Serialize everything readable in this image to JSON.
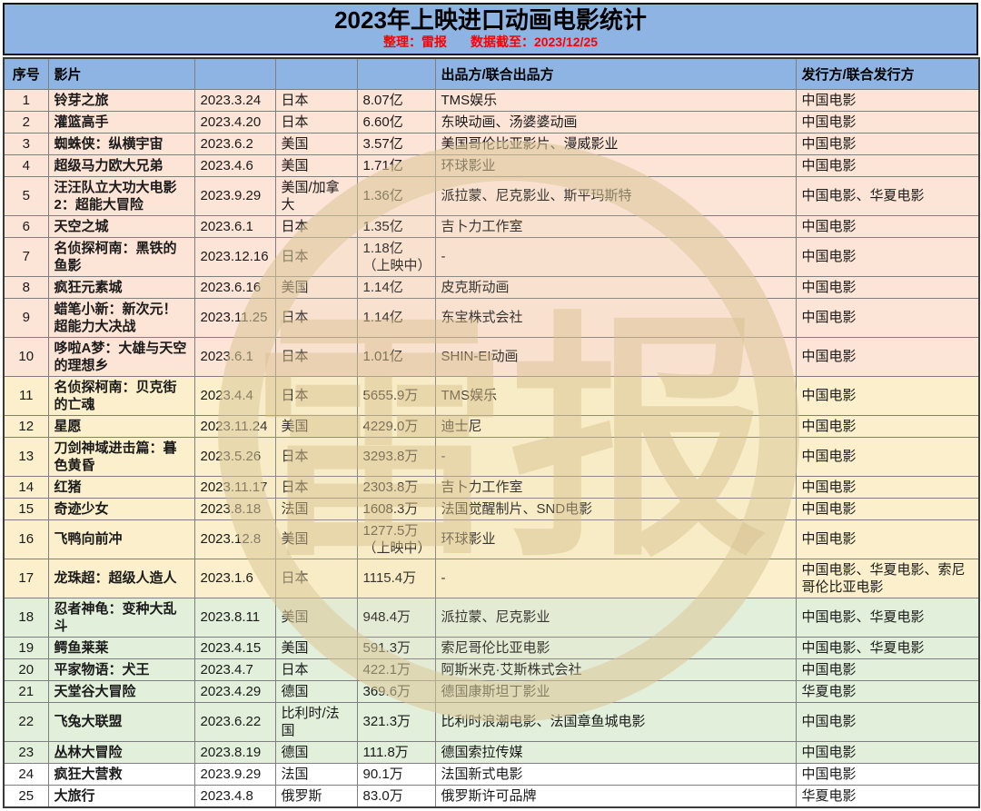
{
  "title": "2023年上映进口动画电影统计",
  "subtitle": {
    "prepared_by": "整理：雷报",
    "data_cutoff": "数据截至：2023/12/25"
  },
  "watermark": {
    "text": "雷报"
  },
  "colors": {
    "title_bar_blue": "#8DB4E2",
    "subtitle_red": "#FF0000",
    "border_gray": "#7F7F7F",
    "group_colors": {
      "pink": "#FCE4D6",
      "yellow": "#FBF0CB",
      "green": "#E2EFDA",
      "white": "#FFFFFF"
    }
  },
  "chart_data": {
    "type": "table",
    "columns": [
      "序号",
      "影片",
      "",
      "",
      "",
      "出品方/联合出品方",
      "发行方/联合发行方"
    ],
    "column_semantics": [
      "index",
      "title",
      "release_date",
      "region",
      "box_office",
      "producer",
      "distributor"
    ],
    "rows": [
      {
        "index": "1",
        "title": "铃芽之旅",
        "release_date": "2023.3.24",
        "region": "日本",
        "box_office": "8.07亿",
        "producer": "TMS娱乐",
        "distributor": "中国电影",
        "group": "pink"
      },
      {
        "index": "2",
        "title": "灌篮高手",
        "release_date": "2023.4.20",
        "region": "日本",
        "box_office": "6.60亿",
        "producer": "东映动画、汤婆婆动画",
        "distributor": "中国电影",
        "group": "pink"
      },
      {
        "index": "3",
        "title": "蜘蛛侠：纵横宇宙",
        "release_date": "2023.6.2",
        "region": "美国",
        "box_office": "3.57亿",
        "producer": "美国哥伦比亚影片、漫威影业",
        "distributor": "中国电影",
        "group": "pink"
      },
      {
        "index": "4",
        "title": "超级马力欧大兄弟",
        "release_date": "2023.4.6",
        "region": "美国",
        "box_office": "1.71亿",
        "producer": "环球影业",
        "distributor": "中国电影",
        "group": "pink"
      },
      {
        "index": "5",
        "title": "汪汪队立大功大电影2：超能大冒险",
        "release_date": "2023.9.29",
        "region": "美国/加拿大",
        "box_office": "1.36亿",
        "producer": "派拉蒙、尼克影业、斯平玛斯特",
        "distributor": "中国电影、华夏电影",
        "group": "pink"
      },
      {
        "index": "6",
        "title": "天空之城",
        "release_date": "2023.6.1",
        "region": "日本",
        "box_office": "1.35亿",
        "producer": "吉卜力工作室",
        "distributor": "中国电影",
        "group": "pink"
      },
      {
        "index": "7",
        "title": "名侦探柯南：黑铁的鱼影",
        "release_date": "2023.12.16",
        "region": "日本",
        "box_office": "1.18亿（上映中）",
        "producer": "-",
        "distributor": "中国电影",
        "group": "pink"
      },
      {
        "index": "8",
        "title": "疯狂元素城",
        "release_date": "2023.6.16",
        "region": "美国",
        "box_office": "1.14亿",
        "producer": "皮克斯动画",
        "distributor": "中国电影",
        "group": "pink"
      },
      {
        "index": "9",
        "title": "蜡笔小新：新次元！超能力大决战",
        "release_date": "2023.11.25",
        "region": "日本",
        "box_office": "1.14亿",
        "producer": "东宝株式会社",
        "distributor": "中国电影",
        "group": "pink"
      },
      {
        "index": "10",
        "title": "哆啦A梦：大雄与天空的理想乡",
        "release_date": "2023.6.1",
        "region": "日本",
        "box_office": "1.01亿",
        "producer": "SHIN-EI动画",
        "distributor": "中国电影",
        "group": "pink"
      },
      {
        "index": "11",
        "title": "名侦探柯南：贝克街的亡魂",
        "release_date": "2023.4.4",
        "region": "日本",
        "box_office": "5655.9万",
        "producer": "TMS娱乐",
        "distributor": "中国电影",
        "group": "yellow"
      },
      {
        "index": "12",
        "title": "星愿",
        "release_date": "2023.11.24",
        "region": "美国",
        "box_office": "4229.0万",
        "producer": "迪士尼",
        "distributor": "中国电影",
        "group": "yellow"
      },
      {
        "index": "13",
        "title": "刀剑神域进击篇：暮色黄昏",
        "release_date": "2023.5.26",
        "region": "日本",
        "box_office": "3293.8万",
        "producer": "-",
        "distributor": "中国电影",
        "group": "yellow"
      },
      {
        "index": "14",
        "title": "红猪",
        "release_date": "2023.11.17",
        "region": "日本",
        "box_office": "2303.8万",
        "producer": "吉卜力工作室",
        "distributor": "中国电影",
        "group": "yellow"
      },
      {
        "index": "15",
        "title": "奇迹少女",
        "release_date": "2023.8.18",
        "region": "法国",
        "box_office": "1608.3万",
        "producer": "法国觉醒制片、SND电影",
        "distributor": "中国电影",
        "group": "yellow"
      },
      {
        "index": "16",
        "title": "飞鸭向前冲",
        "release_date": "2023.12.8",
        "region": "美国",
        "box_office": "1277.5万（上映中）",
        "producer": "环球影业",
        "distributor": "中国电影",
        "group": "yellow"
      },
      {
        "index": "17",
        "title": "龙珠超：超级人造人",
        "release_date": "2023.1.6",
        "region": "日本",
        "box_office": "1115.4万",
        "producer": "-",
        "distributor": "中国电影、华夏电影、索尼哥伦比亚电影",
        "group": "yellow"
      },
      {
        "index": "18",
        "title": "忍者神龟：变种大乱斗",
        "release_date": "2023.8.11",
        "region": "美国",
        "box_office": "948.4万",
        "producer": "派拉蒙、尼克影业",
        "distributor": "中国电影、华夏电影",
        "group": "green"
      },
      {
        "index": "19",
        "title": "鳄鱼莱莱",
        "release_date": "2023.4.15",
        "region": "美国",
        "box_office": "591.3万",
        "producer": "索尼哥伦比亚电影",
        "distributor": "中国电影、华夏电影",
        "group": "green"
      },
      {
        "index": "20",
        "title": "平家物语：犬王",
        "release_date": "2023.4.7",
        "region": "日本",
        "box_office": "422.1万",
        "producer": "阿斯米克·艾斯株式会社",
        "distributor": "中国电影",
        "group": "green"
      },
      {
        "index": "21",
        "title": "天堂谷大冒险",
        "release_date": "2023.4.29",
        "region": "德国",
        "box_office": "369.6万",
        "producer": "德国康斯坦丁影业",
        "distributor": "华夏电影",
        "group": "green"
      },
      {
        "index": "22",
        "title": "飞兔大联盟",
        "release_date": "2023.6.22",
        "region": "比利时/法国",
        "box_office": "321.3万",
        "producer": "比利时浪潮电影、法国章鱼城电影",
        "distributor": "中国电影",
        "group": "green"
      },
      {
        "index": "23",
        "title": "丛林大冒险",
        "release_date": "2023.8.19",
        "region": "德国",
        "box_office": "111.8万",
        "producer": "德国索拉传媒",
        "distributor": "中国电影",
        "group": "green"
      },
      {
        "index": "24",
        "title": "疯狂大营救",
        "release_date": "2023.9.29",
        "region": "法国",
        "box_office": "90.1万",
        "producer": "法国新式电影",
        "distributor": "中国电影",
        "group": "white"
      },
      {
        "index": "25",
        "title": "大旅行",
        "release_date": "2023.4.8",
        "region": "俄罗斯",
        "box_office": "83.0万",
        "producer": "俄罗斯许可品牌",
        "distributor": "华夏电影",
        "group": "white"
      }
    ]
  }
}
